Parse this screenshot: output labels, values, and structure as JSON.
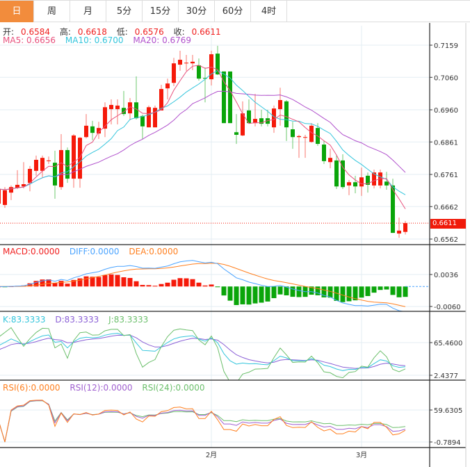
{
  "tabs": [
    "日",
    "周",
    "月",
    "5分",
    "15分",
    "30分",
    "60分",
    "4时"
  ],
  "active_tab": 0,
  "ohlc_legend": {
    "open_label": "开:",
    "open": "0.6584",
    "high_label": "高:",
    "high": "0.6618",
    "low_label": "低:",
    "low": "0.6576",
    "close_label": "收:",
    "close": "0.6611"
  },
  "ma_legend": {
    "ma5": "MA5: 0.6656",
    "ma10": "MA10: 0.6700",
    "ma20": "MA20: 0.6769"
  },
  "macd_legend": {
    "macd": "MACD:0.0000",
    "diff": "DIFF:0.0000",
    "dea": "DEA:0.0000"
  },
  "kdj_legend": {
    "k": "K:83.3333",
    "d": "D:83.3333",
    "j": "J:83.3333"
  },
  "rsi_legend": {
    "rsi6": "RSI(6):0.0000",
    "rsi12": "RSI(12):0.0000",
    "rsi24": "RSI(24):0.0000"
  },
  "current_price": "0.6611",
  "colors": {
    "up": "#f51a0a",
    "down": "#0aa50a",
    "ma5": "#e8507c",
    "ma10": "#33c5dc",
    "ma20": "#b050cc",
    "diff": "#4aa3ff",
    "dea": "#ff7f1e",
    "k": "#33c5dc",
    "d": "#8a5fd6",
    "j": "#6bbf6b",
    "rsi6": "#ff7f1e",
    "rsi12": "#a060d0",
    "rsi24": "#6bbf6b",
    "accent": "#f28c3c"
  },
  "chart_data": {
    "type": "candlestick",
    "price_axis": [
      "0.7159",
      "0.7060",
      "0.6960",
      "0.6861",
      "0.6761",
      "0.6662",
      "0.6562"
    ],
    "price_range": [
      0.6562,
      0.7159
    ],
    "macd_axis": [
      "0.0036",
      "-0.0060"
    ],
    "macd_range": [
      -0.006,
      0.0036
    ],
    "kdj_axis": [
      "65.4600",
      "2.4377"
    ],
    "kdj_range": [
      2.4377,
      65.46
    ],
    "rsi_axis": [
      "59.6305",
      "-0.7894"
    ],
    "rsi_range": [
      -0.7894,
      59.6305
    ],
    "x_labels": [
      {
        "label": "2月",
        "index": 34
      },
      {
        "label": "3月",
        "index": 58
      }
    ],
    "candles": [
      [
        0.6671,
        0.6722,
        0.6658,
        0.6716
      ],
      [
        0.6667,
        0.6722,
        0.6658,
        0.6712
      ],
      [
        0.6705,
        0.6727,
        0.6682,
        0.6722
      ],
      [
        0.672,
        0.6774,
        0.6716,
        0.6729
      ],
      [
        0.6724,
        0.6799,
        0.6718,
        0.6731
      ],
      [
        0.6735,
        0.6787,
        0.6709,
        0.6778
      ],
      [
        0.6772,
        0.6819,
        0.6757,
        0.6806
      ],
      [
        0.6772,
        0.6819,
        0.6752,
        0.6812
      ],
      [
        0.6802,
        0.6816,
        0.6793,
        0.6804
      ],
      [
        0.6797,
        0.6834,
        0.6686,
        0.6727
      ],
      [
        0.6722,
        0.6885,
        0.6714,
        0.6836
      ],
      [
        0.6836,
        0.6844,
        0.6735,
        0.6748
      ],
      [
        0.6748,
        0.6885,
        0.672,
        0.6881
      ],
      [
        0.6748,
        0.6876,
        0.672,
        0.6874
      ],
      [
        0.6876,
        0.6947,
        0.6872,
        0.6911
      ],
      [
        0.6909,
        0.6926,
        0.6866,
        0.6889
      ],
      [
        0.6887,
        0.6923,
        0.687,
        0.6904
      ],
      [
        0.6902,
        0.6983,
        0.6876,
        0.6968
      ],
      [
        0.6962,
        0.6992,
        0.6915,
        0.6975
      ],
      [
        0.6962,
        0.6992,
        0.6915,
        0.6973
      ],
      [
        0.6966,
        0.7018,
        0.6941,
        0.6947
      ],
      [
        0.6949,
        0.6996,
        0.6928,
        0.6983
      ],
      [
        0.6983,
        0.7063,
        0.693,
        0.6934
      ],
      [
        0.6941,
        0.6945,
        0.687,
        0.6909
      ],
      [
        0.6906,
        0.6973,
        0.6906,
        0.6968
      ],
      [
        0.6906,
        0.6973,
        0.6906,
        0.6966
      ],
      [
        0.6958,
        0.7037,
        0.6958,
        0.7024
      ],
      [
        0.7026,
        0.7056,
        0.6992,
        0.7041
      ],
      [
        0.7043,
        0.712,
        0.7033,
        0.7103
      ],
      [
        0.7099,
        0.7142,
        0.708,
        0.7114
      ],
      [
        0.7103,
        0.7129,
        0.708,
        0.7105
      ],
      [
        0.7103,
        0.7129,
        0.7082,
        0.7108
      ],
      [
        0.7097,
        0.7118,
        0.705,
        0.7056
      ],
      [
        0.7058,
        0.709,
        0.6983,
        0.7056
      ],
      [
        0.7054,
        0.7142,
        0.7035,
        0.7131
      ],
      [
        0.7133,
        0.7157,
        0.7067,
        0.7069
      ],
      [
        0.7078,
        0.7078,
        0.6919,
        0.6919
      ],
      [
        0.7078,
        0.7078,
        0.6919,
        0.6919
      ],
      [
        0.6891,
        0.6947,
        0.6855,
        0.6883
      ],
      [
        0.6881,
        0.6986,
        0.6879,
        0.6949
      ],
      [
        0.6958,
        0.6992,
        0.6919,
        0.6919
      ],
      [
        0.6919,
        0.7009,
        0.6909,
        0.6932
      ],
      [
        0.6934,
        0.696,
        0.6909,
        0.6917
      ],
      [
        0.6934,
        0.696,
        0.6909,
        0.6917
      ],
      [
        0.6906,
        0.6973,
        0.6889,
        0.6964
      ],
      [
        0.6962,
        0.7028,
        0.6911,
        0.699
      ],
      [
        0.6986,
        0.699,
        0.6864,
        0.6906
      ],
      [
        0.69,
        0.6923,
        0.684,
        0.6876
      ],
      [
        0.6876,
        0.6883,
        0.6812,
        0.6879
      ],
      [
        0.6876,
        0.6883,
        0.6812,
        0.6876
      ],
      [
        0.6861,
        0.6919,
        0.6859,
        0.6911
      ],
      [
        0.6904,
        0.6919,
        0.6849,
        0.6855
      ],
      [
        0.6853,
        0.6864,
        0.6793,
        0.6802
      ],
      [
        0.6799,
        0.684,
        0.678,
        0.6812
      ],
      [
        0.6804,
        0.6819,
        0.6716,
        0.6724
      ],
      [
        0.6804,
        0.6823,
        0.6716,
        0.6722
      ],
      [
        0.6727,
        0.6744,
        0.6697,
        0.6737
      ],
      [
        0.6737,
        0.6757,
        0.6703,
        0.6724
      ],
      [
        0.6724,
        0.6782,
        0.6695,
        0.6752
      ],
      [
        0.6757,
        0.6767,
        0.6705,
        0.6729
      ],
      [
        0.6727,
        0.6776,
        0.6718,
        0.6767
      ],
      [
        0.6727,
        0.6776,
        0.6718,
        0.6767
      ],
      [
        0.6739,
        0.6769,
        0.6714,
        0.6727
      ],
      [
        0.6727,
        0.6748,
        0.6581,
        0.6581
      ],
      [
        0.6579,
        0.6628,
        0.6566,
        0.6588
      ],
      [
        0.6584,
        0.6618,
        0.6576,
        0.6611
      ]
    ]
  }
}
